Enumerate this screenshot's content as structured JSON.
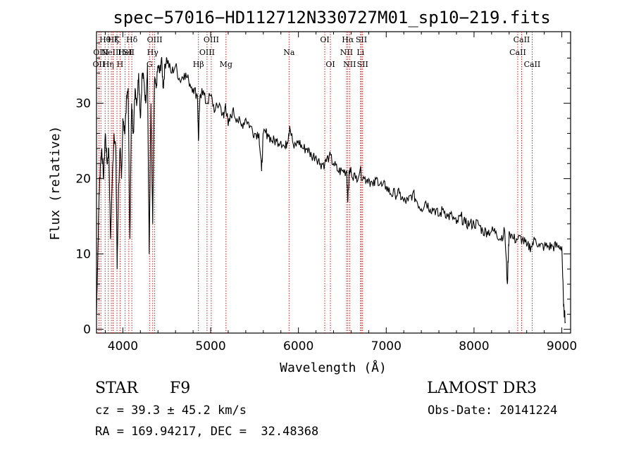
{
  "chart_data": {
    "type": "line",
    "title": "spec−57016−HD112712N330727M01_sp10−219.fits",
    "xlabel": "Wavelength (Å)",
    "ylabel": "Flux (relative)",
    "xlim": [
      3700,
      9100
    ],
    "ylim": [
      -0.5,
      39.5
    ],
    "xticks": [
      4000,
      5000,
      6000,
      7000,
      8000,
      9000
    ],
    "yticks": [
      0,
      10,
      20,
      30
    ],
    "series": [
      {
        "name": "flux",
        "x": [
          3700,
          3715,
          3730,
          3745,
          3760,
          3780,
          3800,
          3820,
          3840,
          3860,
          3880,
          3900,
          3920,
          3935,
          3950,
          3968,
          3985,
          4000,
          4020,
          4040,
          4060,
          4080,
          4100,
          4120,
          4140,
          4160,
          4180,
          4200,
          4220,
          4240,
          4260,
          4280,
          4300,
          4320,
          4340,
          4360,
          4380,
          4400,
          4420,
          4440,
          4460,
          4480,
          4500,
          4550,
          4600,
          4650,
          4700,
          4750,
          4800,
          4850,
          4861,
          4875,
          4900,
          4950,
          5000,
          5050,
          5100,
          5150,
          5170,
          5200,
          5250,
          5300,
          5350,
          5400,
          5450,
          5500,
          5550,
          5580,
          5600,
          5650,
          5700,
          5750,
          5800,
          5850,
          5890,
          5900,
          5950,
          6000,
          6050,
          6100,
          6150,
          6200,
          6250,
          6300,
          6350,
          6400,
          6450,
          6500,
          6550,
          6563,
          6580,
          6600,
          6650,
          6700,
          6750,
          6800,
          6850,
          6900,
          6950,
          7000,
          7050,
          7100,
          7150,
          7200,
          7250,
          7300,
          7350,
          7400,
          7450,
          7500,
          7550,
          7600,
          7650,
          7700,
          7750,
          7800,
          7850,
          7900,
          7950,
          8000,
          8050,
          8100,
          8150,
          8200,
          8250,
          8300,
          8350,
          8380,
          8400,
          8450,
          8500,
          8550,
          8600,
          8650,
          8700,
          8750,
          8800,
          8850,
          8900,
          8950,
          9000,
          9020,
          9040
        ],
        "values": [
          2,
          10,
          18,
          22,
          24,
          20,
          26,
          22,
          24,
          12,
          20,
          26,
          24,
          8,
          18,
          24,
          20,
          28,
          26,
          30,
          32,
          12,
          30,
          26,
          32,
          30,
          34,
          28,
          34,
          33,
          30,
          35,
          10,
          30,
          14,
          33,
          32,
          35,
          34,
          36,
          32,
          35,
          36,
          34,
          35,
          33,
          34,
          33,
          32,
          31,
          25,
          30,
          32,
          30,
          31,
          29,
          30,
          28,
          30,
          27,
          29,
          28,
          27,
          28,
          27,
          26,
          26,
          21,
          26,
          26,
          25,
          25,
          25,
          24,
          26,
          27,
          24,
          25,
          24,
          24,
          23,
          23,
          22,
          22,
          23,
          22,
          21,
          21,
          21,
          17,
          21,
          21,
          20,
          21,
          20,
          20,
          19,
          20,
          19,
          19,
          18,
          18,
          18,
          17,
          17,
          18,
          17,
          16,
          17,
          16,
          16,
          15,
          16,
          15,
          15,
          14,
          15,
          14,
          14,
          14,
          14,
          13,
          13,
          13,
          13,
          12,
          13,
          6,
          13,
          12,
          12,
          12,
          11,
          11,
          12,
          11,
          11,
          11,
          11,
          11,
          11,
          3,
          1
        ]
      }
    ],
    "lines": [
      {
        "w": 3727,
        "labels": [
          {
            "t": "OII",
            "row": 2
          }
        ]
      },
      {
        "w": 3750,
        "labels": [
          {
            "t": "OIII",
            "row": 1
          }
        ]
      },
      {
        "w": 3798,
        "labels": [
          {
            "t": "Hθ",
            "row": 0
          }
        ]
      },
      {
        "w": 3835,
        "labels": [
          {
            "t": "Hη",
            "row": 2
          }
        ]
      },
      {
        "w": 3869,
        "labels": [
          {
            "t": "NeIII",
            "row": 1
          }
        ]
      },
      {
        "w": 3889,
        "labels": [
          {
            "t": "Hζ",
            "row": 0
          }
        ]
      },
      {
        "w": 3933,
        "labels": [
          {
            "t": "K",
            "row": 0
          }
        ]
      },
      {
        "w": 3968,
        "labels": [
          {
            "t": "H",
            "row": 2
          }
        ]
      },
      {
        "w": 4026,
        "labels": [
          {
            "t": "HeI",
            "row": 1
          }
        ]
      },
      {
        "w": 4068,
        "labels": [
          {
            "t": "SII",
            "row": 1
          }
        ]
      },
      {
        "w": 4102,
        "labels": [
          {
            "t": "Hδ",
            "row": 0
          }
        ]
      },
      {
        "w": 4304,
        "labels": [
          {
            "t": "G",
            "row": 2
          }
        ]
      },
      {
        "w": 4340,
        "labels": [
          {
            "t": "Hγ",
            "row": 1
          }
        ]
      },
      {
        "w": 4363,
        "labels": [
          {
            "t": "OIII",
            "row": 0
          }
        ]
      },
      {
        "w": 4861,
        "labels": [
          {
            "t": "Hβ",
            "row": 2
          }
        ]
      },
      {
        "w": 4959,
        "labels": [
          {
            "t": "OIII",
            "row": 1
          }
        ]
      },
      {
        "w": 5007,
        "labels": [
          {
            "t": "OIII",
            "row": 0
          }
        ]
      },
      {
        "w": 5175,
        "labels": [
          {
            "t": "Mg",
            "row": 2
          }
        ]
      },
      {
        "w": 5893,
        "labels": [
          {
            "t": "Na",
            "row": 1
          }
        ]
      },
      {
        "w": 6300,
        "labels": [
          {
            "t": "OI",
            "row": 0
          }
        ]
      },
      {
        "w": 6364,
        "labels": [
          {
            "t": "OI",
            "row": 2
          }
        ]
      },
      {
        "w": 6548,
        "labels": [
          {
            "t": "NII",
            "row": 1
          }
        ]
      },
      {
        "w": 6563,
        "labels": [
          {
            "t": "Hα",
            "row": 0
          }
        ]
      },
      {
        "w": 6583,
        "labels": [
          {
            "t": "NII",
            "row": 2
          }
        ]
      },
      {
        "w": 6707,
        "labels": [
          {
            "t": "Li",
            "row": 1
          }
        ]
      },
      {
        "w": 6717,
        "labels": [
          {
            "t": "SII",
            "row": 0
          }
        ]
      },
      {
        "w": 6731,
        "labels": [
          {
            "t": "SII",
            "row": 2
          }
        ]
      },
      {
        "w": 8498,
        "labels": [
          {
            "t": "CaII",
            "row": 1
          }
        ]
      },
      {
        "w": 8542,
        "labels": [
          {
            "t": "CaII",
            "row": 0
          }
        ]
      },
      {
        "w": 8662,
        "labels": [
          {
            "t": "CaII",
            "row": 2
          }
        ]
      }
    ]
  },
  "info": {
    "object_type": "STAR",
    "subclass": "F9",
    "survey": "LAMOST DR3",
    "cz": "cz = 39.3 ± 45.2 km/s",
    "obs_date": "Obs-Date: 20141224",
    "coords": "RA = 169.94217, DEC =  32.48368"
  },
  "colors": {
    "line": "#000000",
    "marker": "#cc0000"
  }
}
